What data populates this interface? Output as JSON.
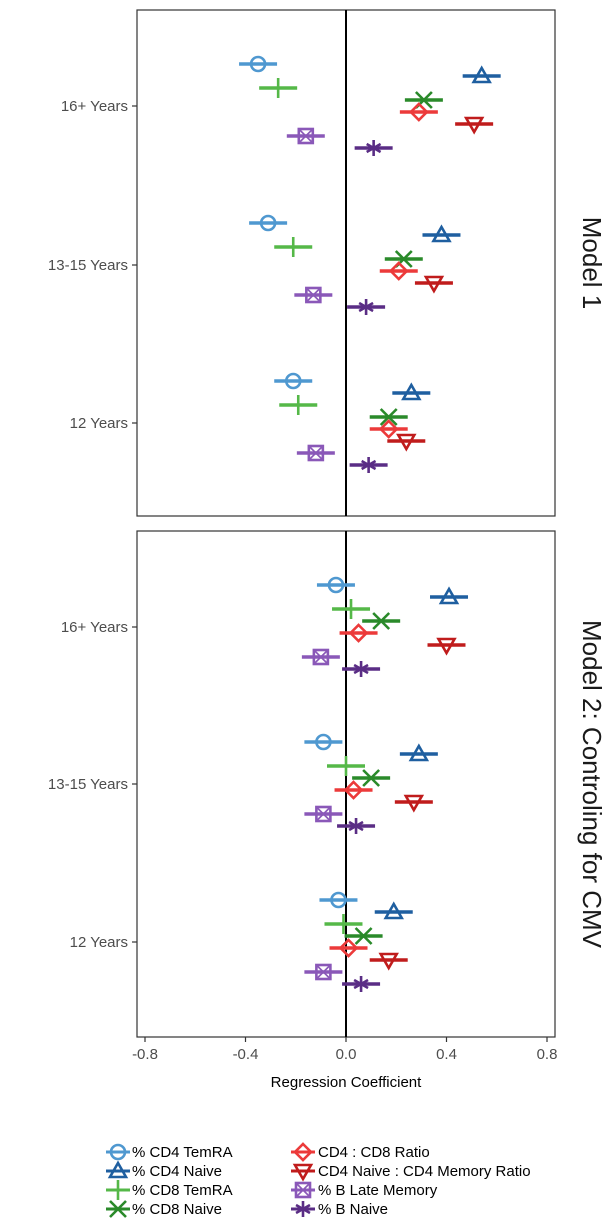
{
  "chart_data": {
    "type": "scatter",
    "subtype": "dot-and-whisker coefficient plot",
    "xlabel": "Regression Coefficient",
    "xlim": [
      -0.8,
      0.8
    ],
    "x_ticks": [
      -0.8,
      -0.4,
      0.0,
      0.4,
      0.8
    ],
    "x_tick_labels": [
      "-0.8",
      "-0.4",
      "0.0",
      "0.4",
      "0.8"
    ],
    "categories": [
      "16+ Years",
      "13-15 Years",
      "12 Years"
    ],
    "reference_line_x": 0,
    "grid": false,
    "legend_position": "bottom",
    "series": [
      {
        "name": "% CD4 TemRA",
        "marker": "circle",
        "color": "#4f98d0"
      },
      {
        "name": "% CD4 Naive",
        "marker": "triangle-up",
        "color": "#1f5fa0"
      },
      {
        "name": "% CD8 TemRA",
        "marker": "plus",
        "color": "#55b848"
      },
      {
        "name": "% CD8 Naive",
        "marker": "x",
        "color": "#2a8a2a"
      },
      {
        "name": "CD4 : CD8 Ratio",
        "marker": "diamond",
        "color": "#ec3a3a"
      },
      {
        "name": "CD4 Naive : CD4 Memory Ratio",
        "marker": "triangle-down",
        "color": "#c01c1c"
      },
      {
        "name": "% B Late Memory",
        "marker": "square-x",
        "color": "#8a58b8"
      },
      {
        "name": "% B Naive",
        "marker": "asterisk",
        "color": "#5a2d85"
      }
    ],
    "panels": [
      {
        "label": "Model 1",
        "estimates": {
          "% CD4 TemRA": {
            "16+ Years": -0.35,
            "13-15 Years": -0.31,
            "12 Years": -0.21
          },
          "% CD4 Naive": {
            "16+ Years": 0.54,
            "13-15 Years": 0.38,
            "12 Years": 0.26
          },
          "% CD8 TemRA": {
            "16+ Years": -0.27,
            "13-15 Years": -0.21,
            "12 Years": -0.19
          },
          "% CD8 Naive": {
            "16+ Years": 0.31,
            "13-15 Years": 0.23,
            "12 Years": 0.17
          },
          "CD4 : CD8 Ratio": {
            "16+ Years": 0.29,
            "13-15 Years": 0.21,
            "12 Years": 0.17
          },
          "CD4 Naive : CD4 Memory Ratio": {
            "16+ Years": 0.51,
            "13-15 Years": 0.35,
            "12 Years": 0.24
          },
          "% B Late Memory": {
            "16+ Years": -0.16,
            "13-15 Years": -0.13,
            "12 Years": -0.12
          },
          "% B Naive": {
            "16+ Years": 0.11,
            "13-15 Years": 0.08,
            "12 Years": 0.09
          }
        }
      },
      {
        "label": "Model 2: Controling for CMV",
        "estimates": {
          "% CD4 TemRA": {
            "16+ Years": -0.04,
            "13-15 Years": -0.09,
            "12 Years": -0.03
          },
          "% CD4 Naive": {
            "16+ Years": 0.41,
            "13-15 Years": 0.29,
            "12 Years": 0.19
          },
          "% CD8 TemRA": {
            "16+ Years": 0.02,
            "13-15 Years": 0.0,
            "12 Years": -0.01
          },
          "% CD8 Naive": {
            "16+ Years": 0.14,
            "13-15 Years": 0.1,
            "12 Years": 0.07
          },
          "CD4 : CD8 Ratio": {
            "16+ Years": 0.05,
            "13-15 Years": 0.03,
            "12 Years": 0.01
          },
          "CD4 Naive : CD4 Memory Ratio": {
            "16+ Years": 0.4,
            "13-15 Years": 0.27,
            "12 Years": 0.17
          },
          "% B Late Memory": {
            "16+ Years": -0.1,
            "13-15 Years": -0.09,
            "12 Years": -0.09
          },
          "% B Naive": {
            "16+ Years": 0.06,
            "13-15 Years": 0.04,
            "12 Years": 0.06
          }
        }
      }
    ]
  }
}
